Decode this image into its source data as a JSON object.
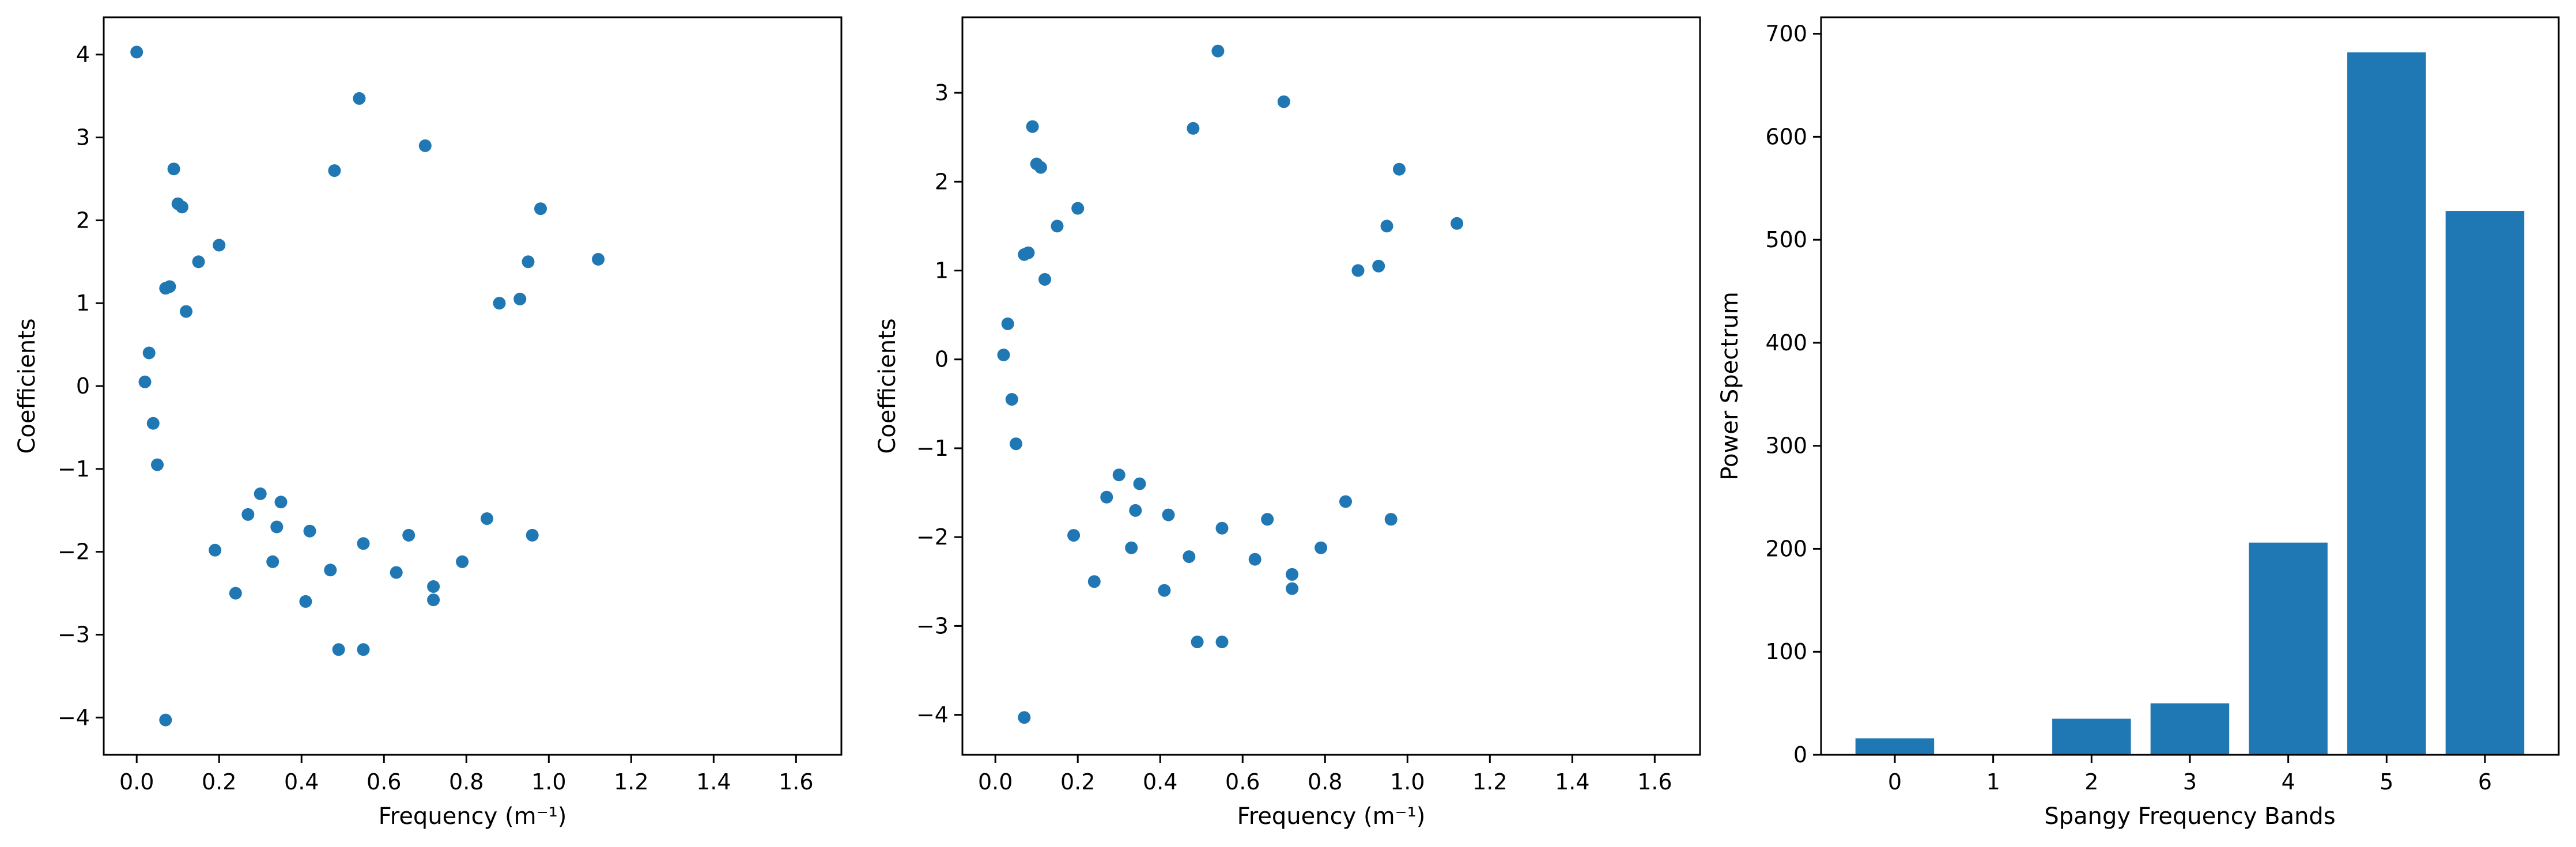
{
  "colors": {
    "mark": "#1f77b4",
    "axis": "#000000",
    "background": "#ffffff"
  },
  "chart_data": [
    {
      "type": "scatter",
      "xlabel": "Frequency (m⁻¹)",
      "ylabel": "Coefficients",
      "xlim": [
        -0.08,
        1.71
      ],
      "ylim": [
        -4.45,
        4.45
      ],
      "xticks": [
        "0.0",
        "0.2",
        "0.4",
        "0.6",
        "0.8",
        "1.0",
        "1.2",
        "1.4",
        "1.6"
      ],
      "yticks": [
        "−4",
        "−3",
        "−2",
        "−1",
        "0",
        "1",
        "2",
        "3",
        "4"
      ],
      "grid": false,
      "series": [
        {
          "points": [
            [
              0.0,
              4.03
            ],
            [
              0.07,
              -4.03
            ],
            [
              0.54,
              3.47
            ],
            [
              0.7,
              2.9
            ],
            [
              0.09,
              2.62
            ],
            [
              0.1,
              2.2
            ],
            [
              0.11,
              2.16
            ],
            [
              0.48,
              2.6
            ],
            [
              0.98,
              2.14
            ],
            [
              0.49,
              -3.18
            ],
            [
              0.55,
              -3.18
            ],
            [
              0.72,
              -2.42
            ],
            [
              0.72,
              -2.58
            ],
            [
              0.41,
              -2.6
            ],
            [
              0.24,
              -2.5
            ],
            [
              0.63,
              -2.25
            ],
            [
              0.47,
              -2.22
            ],
            [
              0.33,
              -2.12
            ],
            [
              0.79,
              -2.12
            ],
            [
              0.19,
              -1.98
            ],
            [
              0.34,
              -1.7
            ],
            [
              0.35,
              -1.4
            ],
            [
              0.3,
              -1.3
            ],
            [
              0.05,
              -0.95
            ],
            [
              0.04,
              -0.45
            ],
            [
              0.02,
              0.05
            ],
            [
              0.03,
              0.4
            ],
            [
              0.08,
              1.2
            ],
            [
              0.07,
              1.18
            ],
            [
              0.12,
              0.9
            ],
            [
              1.12,
              1.53
            ],
            [
              0.93,
              1.05
            ],
            [
              0.95,
              1.5
            ],
            [
              0.88,
              1.0
            ],
            [
              0.85,
              -1.6
            ],
            [
              0.96,
              -1.8
            ],
            [
              0.66,
              -1.8
            ],
            [
              0.55,
              -1.9
            ],
            [
              0.42,
              -1.75
            ],
            [
              0.27,
              -1.55
            ],
            [
              0.15,
              1.5
            ],
            [
              0.2,
              1.7
            ]
          ]
        }
      ]
    },
    {
      "type": "scatter",
      "xlabel": "Frequency (m⁻¹)",
      "ylabel": "Coefficients",
      "xlim": [
        -0.08,
        1.71
      ],
      "ylim": [
        -4.45,
        3.85
      ],
      "xticks": [
        "0.0",
        "0.2",
        "0.4",
        "0.6",
        "0.8",
        "1.0",
        "1.2",
        "1.4",
        "1.6"
      ],
      "yticks": [
        "−4",
        "−3",
        "−2",
        "−1",
        "0",
        "1",
        "2",
        "3"
      ],
      "grid": false,
      "series": [
        {
          "points": [
            [
              0.07,
              -4.03
            ],
            [
              0.54,
              3.47
            ],
            [
              0.7,
              2.9
            ],
            [
              0.09,
              2.62
            ],
            [
              0.1,
              2.2
            ],
            [
              0.11,
              2.16
            ],
            [
              0.48,
              2.6
            ],
            [
              0.98,
              2.14
            ],
            [
              0.49,
              -3.18
            ],
            [
              0.55,
              -3.18
            ],
            [
              0.72,
              -2.42
            ],
            [
              0.72,
              -2.58
            ],
            [
              0.41,
              -2.6
            ],
            [
              0.24,
              -2.5
            ],
            [
              0.63,
              -2.25
            ],
            [
              0.47,
              -2.22
            ],
            [
              0.33,
              -2.12
            ],
            [
              0.79,
              -2.12
            ],
            [
              0.19,
              -1.98
            ],
            [
              0.34,
              -1.7
            ],
            [
              0.35,
              -1.4
            ],
            [
              0.3,
              -1.3
            ],
            [
              0.05,
              -0.95
            ],
            [
              0.04,
              -0.45
            ],
            [
              0.02,
              0.05
            ],
            [
              0.03,
              0.4
            ],
            [
              0.08,
              1.2
            ],
            [
              0.07,
              1.18
            ],
            [
              0.12,
              0.9
            ],
            [
              1.12,
              1.53
            ],
            [
              0.93,
              1.05
            ],
            [
              0.95,
              1.5
            ],
            [
              0.88,
              1.0
            ],
            [
              0.85,
              -1.6
            ],
            [
              0.96,
              -1.8
            ],
            [
              0.66,
              -1.8
            ],
            [
              0.55,
              -1.9
            ],
            [
              0.42,
              -1.75
            ],
            [
              0.27,
              -1.55
            ],
            [
              0.15,
              1.5
            ],
            [
              0.2,
              1.7
            ]
          ]
        }
      ]
    },
    {
      "type": "bar",
      "xlabel": "Spangy Frequency Bands",
      "ylabel": "Power Spectrum",
      "categories": [
        "0",
        "1",
        "2",
        "3",
        "4",
        "5",
        "6"
      ],
      "values": [
        16,
        0,
        35,
        50,
        206,
        682,
        528
      ],
      "xlim": [
        -0.75,
        6.75
      ],
      "ylim": [
        0,
        716
      ],
      "yticks": [
        "0",
        "100",
        "200",
        "300",
        "400",
        "500",
        "600",
        "700"
      ],
      "grid": false
    }
  ]
}
